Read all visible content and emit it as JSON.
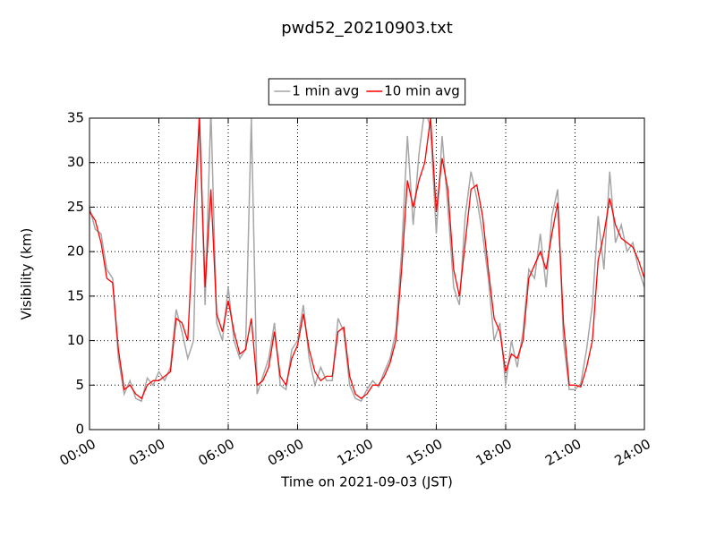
{
  "chart_data": {
    "type": "line",
    "title": "pwd52_20210903.txt",
    "x_label": "Time on 2021-09-03 (JST)",
    "y_label": "Visibility (km)",
    "xlim": [
      0,
      24
    ],
    "xticks": [
      {
        "value": 0,
        "label": "00:00"
      },
      {
        "value": 3,
        "label": "03:00"
      },
      {
        "value": 6,
        "label": "06:00"
      },
      {
        "value": 9,
        "label": "09:00"
      },
      {
        "value": 12,
        "label": "12:00"
      },
      {
        "value": 15,
        "label": "15:00"
      },
      {
        "value": 18,
        "label": "18:00"
      },
      {
        "value": 21,
        "label": "21:00"
      },
      {
        "value": 24,
        "label": "24:00"
      }
    ],
    "ylim": [
      0,
      35
    ],
    "yticks": [
      0,
      5,
      10,
      15,
      20,
      25,
      30,
      35
    ],
    "grid": true,
    "legend": "top-center",
    "x": [
      0,
      0.25,
      0.5,
      0.75,
      1,
      1.25,
      1.5,
      1.75,
      2,
      2.25,
      2.5,
      2.75,
      3,
      3.25,
      3.5,
      3.75,
      4,
      4.25,
      4.5,
      4.75,
      5,
      5.25,
      5.5,
      5.75,
      6,
      6.25,
      6.5,
      6.75,
      7,
      7.25,
      7.5,
      7.75,
      8,
      8.25,
      8.5,
      8.75,
      9,
      9.25,
      9.5,
      9.75,
      10,
      10.25,
      10.5,
      10.75,
      11,
      11.25,
      11.5,
      11.75,
      12,
      12.25,
      12.5,
      12.75,
      13,
      13.25,
      13.5,
      13.75,
      14,
      14.25,
      14.5,
      14.75,
      15,
      15.25,
      15.5,
      15.75,
      16,
      16.25,
      16.5,
      16.75,
      17,
      17.25,
      17.5,
      17.75,
      18,
      18.25,
      18.5,
      18.75,
      19,
      19.25,
      19.5,
      19.75,
      20,
      20.25,
      20.5,
      20.75,
      21,
      21.25,
      21.5,
      21.75,
      22,
      22.25,
      22.5,
      22.75,
      23,
      23.25,
      23.5,
      23.75,
      24
    ],
    "series": [
      {
        "name": "1 min avg",
        "color": "#a6a6a6",
        "values": [
          25,
          22.5,
          22,
          18,
          17,
          8,
          4,
          5.5,
          3.5,
          3.2,
          5.8,
          5,
          6.5,
          5.5,
          7,
          13.5,
          11,
          8,
          10,
          36,
          14,
          36,
          12,
          10,
          16,
          10,
          8,
          9,
          35,
          4,
          6,
          8,
          12,
          5,
          4.5,
          9,
          10,
          14,
          8,
          5,
          7,
          5.5,
          5.5,
          12.5,
          11,
          5,
          3.5,
          3.2,
          4.5,
          5.5,
          4.8,
          6.5,
          8,
          11,
          20,
          33,
          23,
          31,
          36,
          34,
          22,
          33,
          25,
          16,
          14,
          24,
          29,
          26,
          22,
          17,
          10,
          12,
          5,
          10,
          7,
          11,
          18,
          17,
          22,
          16,
          24,
          27,
          10,
          4.5,
          4.5,
          5.2,
          9,
          14,
          24,
          18,
          29,
          21,
          23,
          20,
          21,
          18,
          16
        ]
      },
      {
        "name": "10 min avg",
        "color": "#ff0000",
        "values": [
          24.5,
          23.5,
          21,
          17,
          16.5,
          9,
          4.5,
          5,
          4,
          3.5,
          5,
          5.5,
          5.5,
          6,
          6.5,
          12.5,
          12,
          10,
          23.5,
          35,
          16,
          27,
          13,
          11,
          14.5,
          11,
          8.5,
          9,
          12.5,
          5,
          5.5,
          7,
          11,
          6,
          5,
          8,
          9.5,
          13,
          9,
          6.5,
          5.5,
          6,
          6,
          11,
          11.5,
          6,
          4,
          3.5,
          4,
          5,
          5,
          6,
          7.5,
          10,
          18,
          28,
          25,
          28,
          30,
          35,
          24.5,
          30.5,
          27,
          18,
          15,
          21,
          27,
          27.5,
          24,
          18,
          12.5,
          11,
          6.5,
          8.5,
          8,
          10,
          17,
          18.5,
          20,
          18,
          22,
          25.5,
          12,
          5,
          5,
          4.8,
          7,
          10,
          19,
          22,
          26,
          23,
          21.5,
          21,
          20.5,
          19,
          17
        ]
      }
    ]
  }
}
